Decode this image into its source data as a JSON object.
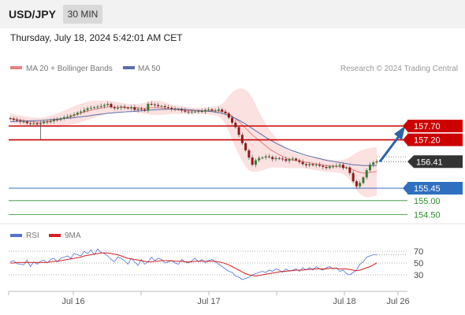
{
  "header": {
    "symbol": "USD/JPY",
    "timeframe": "30 MIN"
  },
  "datetime": "Thursday, July 18, 2024 5:42:01 AM CET",
  "legend": {
    "bb_label": "MA 20 + Bollinger Bands",
    "ma50_label": "MA 50",
    "credit": "Research © 2024 Trading Central"
  },
  "rsi_legend": {
    "rsi_label": "RSI",
    "ma9_label": "9MA"
  },
  "colors": {
    "resistance": "#cc0000",
    "support": "#2f6fbf",
    "target": "#2f8f2f",
    "ma20": "#e88080",
    "ma50": "#5b6ea8",
    "candle_up": "#2f7d2f",
    "candle_down": "#8b1a1a",
    "arrow": "#2e64a8",
    "rsi": "#5572d4",
    "ma9": "#d42020"
  },
  "chart_data": [
    {
      "type": "candlestick",
      "title": "USD/JPY 30 MIN",
      "x_labels": [
        "Jul 16",
        "Jul 17",
        "Jul 18",
        "Jul 26"
      ],
      "ylim": [
        154.0,
        158.6
      ],
      "levels": [
        {
          "name": "resistance",
          "value": 157.7,
          "label": "157.70",
          "color": "#cc0000"
        },
        {
          "name": "resistance",
          "value": 157.2,
          "label": "157.20",
          "color": "#cc0000"
        },
        {
          "name": "last",
          "value": 156.41,
          "label": "156.41",
          "color": "#333333"
        },
        {
          "name": "support",
          "value": 155.45,
          "label": "155.45",
          "color": "#2f6fbf"
        },
        {
          "name": "target",
          "value": 155.0,
          "label": "155.00",
          "color": "#2f8f2f"
        },
        {
          "name": "target",
          "value": 154.5,
          "label": "154.50",
          "color": "#2f8f2f"
        }
      ],
      "close": [
        157.96,
        157.92,
        157.9,
        157.86,
        157.86,
        157.8,
        157.78,
        157.8,
        157.76,
        157.8,
        157.86,
        157.84,
        157.88,
        157.94,
        157.92,
        157.98,
        158.02,
        158.04,
        158.08,
        158.12,
        158.18,
        158.22,
        158.28,
        158.34,
        158.36,
        158.38,
        158.4,
        158.42,
        158.46,
        158.5,
        158.38,
        158.34,
        158.36,
        158.4,
        158.36,
        158.34,
        158.38,
        158.28,
        158.32,
        158.3,
        158.26,
        158.5,
        158.48,
        158.46,
        158.42,
        158.42,
        158.38,
        158.36,
        158.32,
        158.3,
        158.3,
        158.26,
        158.22,
        158.2,
        158.22,
        158.22,
        158.24,
        158.22,
        158.28,
        158.3,
        158.26,
        158.26,
        158.3,
        158.22,
        158.16,
        158.0,
        157.82,
        157.66,
        157.38,
        157.08,
        156.82,
        156.56,
        156.3,
        156.46,
        156.54,
        156.56,
        156.6,
        156.58,
        156.5,
        156.54,
        156.52,
        156.5,
        156.44,
        156.5,
        156.52,
        156.46,
        156.4,
        156.32,
        156.28,
        156.32,
        156.28,
        156.3,
        156.26,
        156.22,
        156.18,
        156.24,
        156.24,
        156.26,
        156.3,
        156.18,
        156.2,
        156.0,
        155.7,
        155.52,
        155.64,
        155.84,
        156.1,
        156.3,
        156.38,
        156.42
      ],
      "ma20": [
        157.98,
        157.96,
        157.94,
        157.92,
        157.9,
        157.88,
        157.86,
        157.85,
        157.84,
        157.84,
        157.84,
        157.86,
        157.88,
        157.9,
        157.92,
        157.95,
        157.98,
        158.0,
        158.04,
        158.08,
        158.12,
        158.16,
        158.2,
        158.24,
        158.27,
        158.3,
        158.33,
        158.35,
        158.37,
        158.39,
        158.39,
        158.38,
        158.38,
        158.38,
        158.38,
        158.37,
        158.36,
        158.36,
        158.36,
        158.35,
        158.34,
        158.35,
        158.36,
        158.36,
        158.36,
        158.35,
        158.34,
        158.32,
        158.31,
        158.3,
        158.29,
        158.28,
        158.27,
        158.26,
        158.25,
        158.25,
        158.25,
        158.25,
        158.25,
        158.25,
        158.25,
        158.25,
        158.24,
        158.22,
        158.2,
        158.14,
        158.06,
        157.96,
        157.86,
        157.74,
        157.62,
        157.5,
        157.38,
        157.28,
        157.18,
        157.08,
        156.98,
        156.88,
        156.8,
        156.73,
        156.66,
        156.6,
        156.54,
        156.5,
        156.47,
        156.45,
        156.43,
        156.41,
        156.39,
        156.37,
        156.35,
        156.33,
        156.31,
        156.29,
        156.27,
        156.26,
        156.25,
        156.24,
        156.23,
        156.22,
        156.2,
        156.17,
        156.12,
        156.06,
        156.02,
        156.0,
        156.0,
        156.02,
        156.04,
        156.06
      ],
      "bb_upper": [
        158.16,
        158.12,
        158.1,
        158.08,
        158.06,
        158.04,
        158.02,
        158.01,
        158.0,
        158.0,
        158.02,
        158.04,
        158.08,
        158.12,
        158.16,
        158.2,
        158.26,
        158.3,
        158.36,
        158.42,
        158.46,
        158.5,
        158.54,
        158.58,
        158.6,
        158.62,
        158.62,
        158.62,
        158.62,
        158.62,
        158.6,
        158.58,
        158.56,
        158.54,
        158.52,
        158.5,
        158.5,
        158.5,
        158.5,
        158.52,
        158.54,
        158.58,
        158.62,
        158.62,
        158.62,
        158.6,
        158.56,
        158.52,
        158.48,
        158.46,
        158.44,
        158.42,
        158.4,
        158.38,
        158.37,
        158.36,
        158.36,
        158.36,
        158.37,
        158.38,
        158.4,
        158.42,
        158.44,
        158.5,
        158.62,
        158.78,
        158.92,
        159.0,
        159.06,
        159.06,
        159.02,
        158.9,
        158.72,
        158.48,
        158.22,
        157.98,
        157.76,
        157.58,
        157.42,
        157.28,
        157.12,
        157.0,
        156.9,
        156.82,
        156.76,
        156.72,
        156.68,
        156.65,
        156.62,
        156.6,
        156.58,
        156.56,
        156.54,
        156.52,
        156.5,
        156.48,
        156.47,
        156.46,
        156.46,
        156.48,
        156.52,
        156.58,
        156.66,
        156.74,
        156.8,
        156.84,
        156.88,
        156.9,
        156.92,
        156.94
      ],
      "bb_lower": [
        157.8,
        157.78,
        157.76,
        157.74,
        157.72,
        157.7,
        157.68,
        157.68,
        157.68,
        157.68,
        157.66,
        157.66,
        157.66,
        157.66,
        157.66,
        157.68,
        157.7,
        157.72,
        157.74,
        157.76,
        157.8,
        157.84,
        157.88,
        157.92,
        157.96,
        158.0,
        158.04,
        158.08,
        158.12,
        158.16,
        158.18,
        158.18,
        158.2,
        158.22,
        158.24,
        158.24,
        158.22,
        158.2,
        158.18,
        158.16,
        158.14,
        158.12,
        158.1,
        158.1,
        158.1,
        158.1,
        158.12,
        158.12,
        158.14,
        158.14,
        158.14,
        158.14,
        158.14,
        158.14,
        158.13,
        158.14,
        158.14,
        158.14,
        158.13,
        158.12,
        158.1,
        158.08,
        158.04,
        157.94,
        157.78,
        157.5,
        157.2,
        156.92,
        156.66,
        156.42,
        156.22,
        156.1,
        156.04,
        156.04,
        156.06,
        156.1,
        156.14,
        156.18,
        156.2,
        156.2,
        156.2,
        156.2,
        156.18,
        156.18,
        156.18,
        156.18,
        156.18,
        156.17,
        156.16,
        156.14,
        156.12,
        156.1,
        156.08,
        156.06,
        156.04,
        156.04,
        156.03,
        156.02,
        156.0,
        155.96,
        155.88,
        155.76,
        155.58,
        155.38,
        155.24,
        155.16,
        155.12,
        155.14,
        155.16,
        155.18
      ],
      "ma50": [
        157.86,
        157.86,
        157.87,
        157.87,
        157.88,
        157.88,
        157.89,
        157.89,
        157.9,
        157.9,
        157.91,
        157.92,
        157.93,
        157.94,
        157.95,
        157.96,
        157.97,
        157.98,
        157.99,
        158.0,
        158.02,
        158.03,
        158.05,
        158.06,
        158.08,
        158.1,
        158.11,
        158.13,
        158.14,
        158.16,
        158.17,
        158.18,
        158.19,
        158.2,
        158.21,
        158.22,
        158.22,
        158.23,
        158.24,
        158.25,
        158.26,
        158.27,
        158.28,
        158.29,
        158.29,
        158.3,
        158.3,
        158.31,
        158.31,
        158.32,
        158.32,
        158.31,
        158.3,
        158.29,
        158.28,
        158.27,
        158.26,
        158.25,
        158.24,
        158.23,
        158.22,
        158.2,
        158.18,
        158.16,
        158.12,
        158.08,
        158.03,
        157.97,
        157.91,
        157.84,
        157.77,
        157.69,
        157.61,
        157.53,
        157.45,
        157.37,
        157.29,
        157.22,
        157.15,
        157.08,
        157.02,
        156.96,
        156.9,
        156.85,
        156.8,
        156.76,
        156.72,
        156.68,
        156.64,
        156.61,
        156.58,
        156.55,
        156.52,
        156.49,
        156.46,
        156.44,
        156.42,
        156.4,
        156.38,
        156.36,
        156.34,
        156.32,
        156.3,
        156.29,
        156.28,
        156.27,
        156.27,
        156.27,
        156.27,
        156.27
      ],
      "forecast": {
        "from": 156.41,
        "to": 157.7
      }
    },
    {
      "type": "line",
      "title": "RSI",
      "y_ticks": [
        70,
        50,
        30
      ],
      "ylim": [
        10,
        85
      ],
      "series": [
        {
          "name": "RSI",
          "values": [
            52,
            54,
            49,
            48,
            47,
            55,
            44,
            52,
            48,
            53,
            55,
            50,
            56,
            58,
            52,
            58,
            60,
            62,
            58,
            66,
            64,
            62,
            70,
            66,
            72,
            64,
            74,
            68,
            66,
            62,
            56,
            52,
            60,
            58,
            54,
            48,
            58,
            52,
            46,
            56,
            48,
            52,
            60,
            54,
            58,
            56,
            50,
            52,
            54,
            50,
            48,
            56,
            52,
            50,
            54,
            58,
            52,
            56,
            50,
            54,
            56,
            52,
            48,
            44,
            40,
            36,
            34,
            28,
            26,
            22,
            24,
            26,
            30,
            32,
            34,
            36,
            34,
            38,
            36,
            40,
            38,
            34,
            40,
            36,
            38,
            40,
            36,
            42,
            38,
            42,
            38,
            44,
            40,
            38,
            42,
            44,
            40,
            42,
            36,
            38,
            32,
            30,
            34,
            38,
            48,
            52,
            60,
            62,
            64,
            64
          ]
        },
        {
          "name": "9MA",
          "values": [
            50,
            50,
            51,
            51,
            51,
            51,
            51,
            51,
            51,
            51,
            51,
            51,
            52,
            53,
            53,
            54,
            55,
            56,
            57,
            58,
            59,
            60,
            62,
            63,
            64,
            65,
            66,
            67,
            67,
            67,
            66,
            65,
            64,
            62,
            60,
            58,
            57,
            56,
            55,
            54,
            53,
            52,
            52,
            53,
            53,
            54,
            54,
            54,
            54,
            53,
            53,
            53,
            52,
            52,
            52,
            53,
            53,
            53,
            53,
            53,
            53,
            53,
            52,
            51,
            49,
            47,
            44,
            41,
            38,
            35,
            32,
            30,
            29,
            28,
            29,
            30,
            31,
            32,
            33,
            34,
            35,
            36,
            36,
            37,
            37,
            38,
            38,
            38,
            39,
            39,
            40,
            40,
            40,
            40,
            40,
            41,
            41,
            41,
            40,
            40,
            40,
            39,
            38,
            37,
            38,
            40,
            42,
            44,
            47,
            50
          ]
        }
      ]
    }
  ]
}
